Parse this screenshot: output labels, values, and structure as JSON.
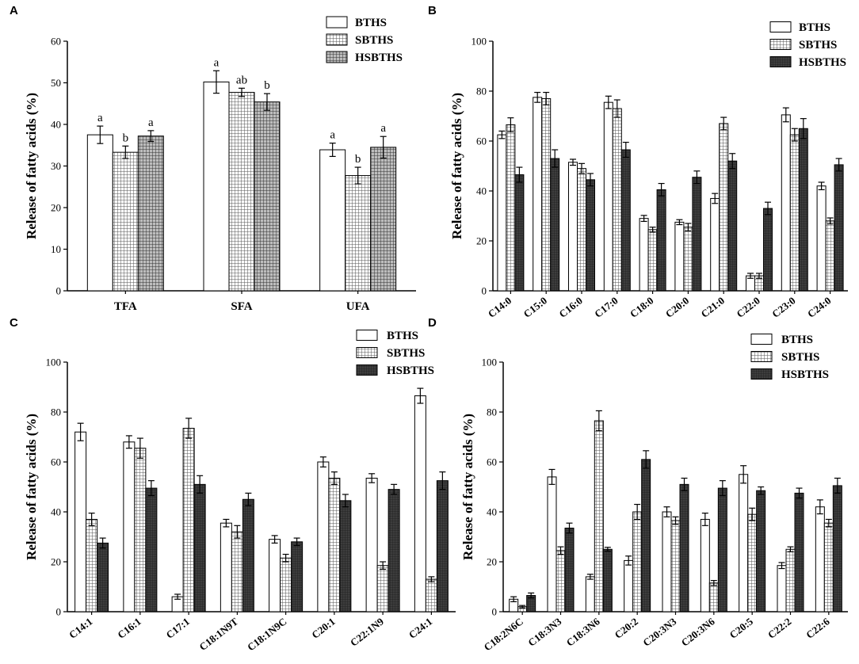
{
  "colors": {
    "bths": "#ffffff",
    "sbths_pattern": "#444444",
    "hsbths_pattern": "#2a2a2a",
    "hsbths_dark": "#3a3a3a",
    "axis": "#000000"
  },
  "chart_data": [
    {
      "id": "A",
      "type": "bar",
      "panel_label": "A",
      "ylabel": "Release of fatty acids (%)",
      "ylim": [
        0,
        60
      ],
      "yticks": [
        0,
        10,
        20,
        30,
        40,
        50,
        60
      ],
      "categories": [
        "TFA",
        "SFA",
        "UFA"
      ],
      "series": [
        {
          "name": "BTHS",
          "style": "white",
          "values": [
            37.5,
            50.2,
            33.9
          ],
          "errors": [
            2.1,
            2.7,
            1.6
          ],
          "sig": [
            "a",
            "a",
            "a"
          ]
        },
        {
          "name": "SBTHS",
          "style": "grid",
          "values": [
            33.3,
            47.7,
            27.7
          ],
          "errors": [
            1.5,
            1.0,
            2.0
          ],
          "sig": [
            "b",
            "ab",
            "b"
          ]
        },
        {
          "name": "HSBTHS",
          "style": "darkgrid",
          "values": [
            37.2,
            45.4,
            34.5
          ],
          "errors": [
            1.3,
            2.0,
            2.6
          ],
          "sig": [
            "a",
            "b",
            "a"
          ]
        }
      ],
      "legend": "top-right"
    },
    {
      "id": "B",
      "type": "bar",
      "panel_label": "B",
      "ylabel": "Release of fatty acids (%)",
      "ylim": [
        0,
        100
      ],
      "yticks": [
        0,
        20,
        40,
        60,
        80,
        100
      ],
      "categories": [
        "C14:0",
        "C15:0",
        "C16:0",
        "C17:0",
        "C18:0",
        "C20:0",
        "C21:0",
        "C22:0",
        "C23:0",
        "C24:0"
      ],
      "series": [
        {
          "name": "BTHS",
          "style": "white",
          "values": [
            62.5,
            77.5,
            51.5,
            75.5,
            29.0,
            27.5,
            37.0,
            6.0,
            70.5,
            42.0
          ],
          "errors": [
            1.5,
            2.0,
            1.2,
            2.5,
            1.2,
            1.0,
            2.0,
            1.0,
            2.8,
            1.5
          ]
        },
        {
          "name": "SBTHS",
          "style": "grid",
          "values": [
            66.5,
            77.0,
            49.0,
            73.0,
            24.5,
            25.5,
            67.0,
            6.0,
            62.5,
            28.0
          ],
          "errors": [
            2.8,
            2.5,
            2.0,
            3.5,
            1.0,
            1.5,
            2.5,
            1.0,
            2.5,
            1.2
          ]
        },
        {
          "name": "HSBTHS",
          "style": "dark",
          "values": [
            46.5,
            53.0,
            44.5,
            56.5,
            40.5,
            45.5,
            52.0,
            33.0,
            65.0,
            50.5
          ],
          "errors": [
            3.0,
            3.5,
            2.5,
            3.0,
            2.5,
            2.5,
            3.0,
            2.5,
            4.0,
            2.5
          ]
        }
      ],
      "legend": "top-right"
    },
    {
      "id": "C",
      "type": "bar",
      "panel_label": "C",
      "ylabel": "Release of fatty acids (%)",
      "ylim": [
        0,
        100
      ],
      "yticks": [
        0,
        20,
        40,
        60,
        80,
        100
      ],
      "categories": [
        "C14:1",
        "C16:1",
        "C17:1",
        "C18:1N9T",
        "C18:1N9C",
        "C20:1",
        "C22:1N9",
        "C24:1"
      ],
      "series": [
        {
          "name": "BTHS",
          "style": "white",
          "values": [
            72.0,
            68.0,
            6.0,
            35.5,
            29.0,
            60.0,
            53.5,
            86.5
          ],
          "errors": [
            3.5,
            2.5,
            1.0,
            1.5,
            1.5,
            2.0,
            1.8,
            3.0
          ]
        },
        {
          "name": "SBTHS",
          "style": "grid",
          "values": [
            37.0,
            65.5,
            73.5,
            32.0,
            21.5,
            53.5,
            18.5,
            13.0
          ],
          "errors": [
            2.5,
            4.0,
            4.0,
            2.5,
            1.5,
            2.5,
            1.5,
            1.0
          ]
        },
        {
          "name": "HSBTHS",
          "style": "dark",
          "values": [
            27.5,
            49.5,
            51.0,
            45.0,
            28.0,
            44.5,
            49.0,
            52.5
          ],
          "errors": [
            2.0,
            3.0,
            3.5,
            2.5,
            1.5,
            2.5,
            2.0,
            3.5
          ]
        }
      ],
      "legend": "top-right"
    },
    {
      "id": "D",
      "type": "bar",
      "panel_label": "D",
      "ylabel": "Release of fatty acids (%)",
      "ylim": [
        0,
        100
      ],
      "yticks": [
        0,
        20,
        40,
        60,
        80,
        100
      ],
      "categories": [
        "C18:2N6C",
        "C18:3N3",
        "C18:3N6",
        "C20:2",
        "C20:3N3",
        "C20:3N6",
        "C20:5",
        "C22:2",
        "C22:6"
      ],
      "series": [
        {
          "name": "BTHS",
          "style": "white",
          "values": [
            5.0,
            54.0,
            14.0,
            20.5,
            40.0,
            37.0,
            55.0,
            18.5,
            42.0
          ],
          "errors": [
            1.0,
            3.0,
            1.0,
            1.8,
            2.0,
            2.5,
            3.5,
            1.2,
            2.8
          ]
        },
        {
          "name": "SBTHS",
          "style": "grid",
          "values": [
            2.0,
            24.5,
            76.5,
            40.0,
            36.5,
            11.5,
            39.0,
            25.0,
            35.5
          ],
          "errors": [
            0.5,
            1.5,
            4.0,
            3.0,
            1.5,
            1.0,
            2.5,
            1.0,
            1.5
          ]
        },
        {
          "name": "HSBTHS",
          "style": "dark",
          "values": [
            6.5,
            33.5,
            25.0,
            61.0,
            51.0,
            49.5,
            48.5,
            47.5,
            50.5
          ],
          "errors": [
            1.0,
            2.0,
            0.8,
            3.5,
            2.5,
            3.0,
            1.5,
            2.0,
            3.0
          ]
        }
      ],
      "legend": "top-right"
    }
  ]
}
